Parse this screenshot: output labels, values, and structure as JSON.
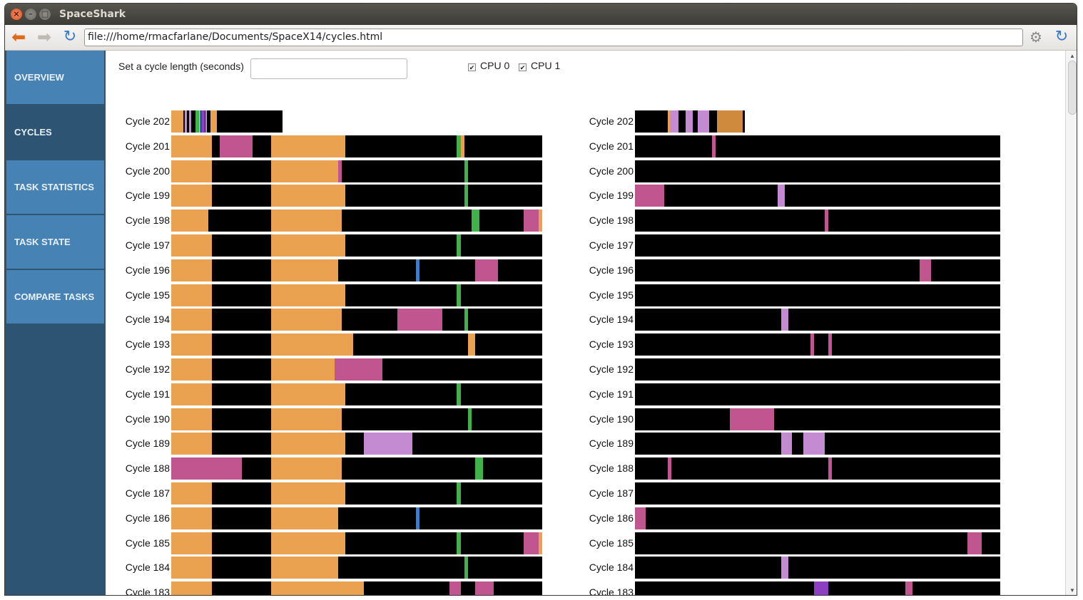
{
  "window": {
    "title": "SpaceShark"
  },
  "toolbar": {
    "url": "file:///home/rmacfarlane/Documents/SpaceX14/cycles.html"
  },
  "sidebar": {
    "items": [
      {
        "label": "OVERVIEW",
        "active": false
      },
      {
        "label": "CYCLES",
        "active": true
      },
      {
        "label": "TASK STATISTICS",
        "active": false
      },
      {
        "label": "TASK STATE",
        "active": false
      },
      {
        "label": "COMPARE TASKS",
        "active": false
      }
    ]
  },
  "controls": {
    "cycle_length_label": "Set a cycle length (seconds)",
    "cycle_length_value": "",
    "cpus": [
      {
        "label": "CPU 0",
        "checked": true
      },
      {
        "label": "CPU 1",
        "checked": true
      }
    ]
  },
  "colors": {
    "idle": "#000000",
    "orange": "#eaa150",
    "dark_orange": "#cf8a3e",
    "magenta": "#c0558f",
    "lavender": "#c48ad2",
    "green": "#3fb24a",
    "blue": "#2f7fe0",
    "purple": "#8b3fc2",
    "cyan": "#4ed6d0",
    "gray": "#4a4a4a",
    "accent": "#4682b4",
    "sidebar_bg": "#2d5473"
  },
  "cycles": {
    "rows": [
      {
        "label": "Cycle 202",
        "cpu0": [
          [
            0,
            11,
            "orange"
          ],
          [
            11,
            12,
            "black"
          ],
          [
            12,
            14,
            "lavender"
          ],
          [
            14,
            16,
            "black"
          ],
          [
            16,
            18,
            "lavender"
          ],
          [
            18,
            22,
            "black"
          ],
          [
            22,
            25,
            "green"
          ],
          [
            25,
            26,
            "cyan"
          ],
          [
            26,
            27,
            "black"
          ],
          [
            27,
            30,
            "purple"
          ],
          [
            30,
            31,
            "black"
          ],
          [
            31,
            32,
            "lavender"
          ],
          [
            32,
            35,
            "black"
          ],
          [
            35,
            41,
            "orange"
          ]
        ],
        "cpu1": [
          [
            0,
            30,
            "black"
          ],
          [
            30,
            32,
            "orange"
          ],
          [
            32,
            40,
            "lavender"
          ],
          [
            40,
            46,
            "black"
          ],
          [
            46,
            53,
            "lavender"
          ],
          [
            53,
            57,
            "black"
          ],
          [
            57,
            68,
            "lavender"
          ],
          [
            68,
            75,
            "black"
          ],
          [
            75,
            98,
            "dark_orange"
          ],
          [
            98,
            99,
            "black"
          ]
        ],
        "short": true
      },
      {
        "label": "Cycle 201",
        "cpu0": [
          [
            0,
            11,
            "orange"
          ],
          [
            11,
            13,
            "black"
          ],
          [
            13,
            22,
            "magenta"
          ],
          [
            22,
            27,
            "black"
          ],
          [
            27,
            47,
            "orange"
          ],
          [
            47,
            77,
            "black"
          ],
          [
            77,
            78,
            "green"
          ],
          [
            78,
            79,
            "orange"
          ],
          [
            79,
            100,
            "black"
          ]
        ],
        "cpu1": [
          [
            0,
            21,
            "black"
          ],
          [
            21,
            22,
            "magenta"
          ],
          [
            22,
            100,
            "black"
          ]
        ]
      },
      {
        "label": "Cycle 200",
        "cpu0": [
          [
            0,
            11,
            "orange"
          ],
          [
            11,
            27,
            "black"
          ],
          [
            27,
            45,
            "orange"
          ],
          [
            45,
            46,
            "magenta"
          ],
          [
            46,
            79,
            "black"
          ],
          [
            79,
            80,
            "green"
          ],
          [
            80,
            100,
            "black"
          ]
        ],
        "cpu1": [
          [
            0,
            100,
            "black"
          ]
        ]
      },
      {
        "label": "Cycle 199",
        "cpu0": [
          [
            0,
            11,
            "orange"
          ],
          [
            11,
            27,
            "black"
          ],
          [
            27,
            47,
            "orange"
          ],
          [
            47,
            79,
            "black"
          ],
          [
            79,
            80,
            "green"
          ],
          [
            80,
            100,
            "black"
          ]
        ],
        "cpu1": [
          [
            0,
            8,
            "magenta"
          ],
          [
            8,
            39,
            "black"
          ],
          [
            39,
            41,
            "lavender"
          ],
          [
            41,
            100,
            "black"
          ]
        ]
      },
      {
        "label": "Cycle 198",
        "cpu0": [
          [
            0,
            10,
            "orange"
          ],
          [
            10,
            27,
            "black"
          ],
          [
            27,
            46,
            "orange"
          ],
          [
            46,
            81,
            "black"
          ],
          [
            81,
            83,
            "green"
          ],
          [
            83,
            95,
            "black"
          ],
          [
            95,
            99,
            "magenta"
          ],
          [
            99,
            100,
            "orange"
          ]
        ],
        "cpu1": [
          [
            0,
            52,
            "black"
          ],
          [
            52,
            53,
            "magenta"
          ],
          [
            53,
            100,
            "black"
          ]
        ]
      },
      {
        "label": "Cycle 197",
        "cpu0": [
          [
            0,
            11,
            "orange"
          ],
          [
            11,
            27,
            "black"
          ],
          [
            27,
            47,
            "orange"
          ],
          [
            47,
            77,
            "black"
          ],
          [
            77,
            78,
            "green"
          ],
          [
            78,
            100,
            "black"
          ]
        ],
        "cpu1": [
          [
            0,
            100,
            "black"
          ]
        ]
      },
      {
        "label": "Cycle 196",
        "cpu0": [
          [
            0,
            11,
            "orange"
          ],
          [
            11,
            27,
            "black"
          ],
          [
            27,
            45,
            "orange"
          ],
          [
            45,
            66,
            "black"
          ],
          [
            66,
            67,
            "blue"
          ],
          [
            67,
            82,
            "black"
          ],
          [
            82,
            88,
            "magenta"
          ],
          [
            88,
            100,
            "black"
          ]
        ],
        "cpu1": [
          [
            0,
            78,
            "black"
          ],
          [
            78,
            81,
            "magenta"
          ],
          [
            81,
            100,
            "black"
          ]
        ]
      },
      {
        "label": "Cycle 195",
        "cpu0": [
          [
            0,
            11,
            "orange"
          ],
          [
            11,
            27,
            "black"
          ],
          [
            27,
            47,
            "orange"
          ],
          [
            47,
            77,
            "black"
          ],
          [
            77,
            78,
            "green"
          ],
          [
            78,
            100,
            "black"
          ]
        ],
        "cpu1": [
          [
            0,
            100,
            "black"
          ]
        ]
      },
      {
        "label": "Cycle 194",
        "cpu0": [
          [
            0,
            11,
            "orange"
          ],
          [
            11,
            27,
            "black"
          ],
          [
            27,
            46,
            "orange"
          ],
          [
            46,
            61,
            "black"
          ],
          [
            61,
            73,
            "magenta"
          ],
          [
            73,
            79,
            "black"
          ],
          [
            79,
            80,
            "green"
          ],
          [
            80,
            100,
            "black"
          ]
        ],
        "cpu1": [
          [
            0,
            40,
            "black"
          ],
          [
            40,
            42,
            "lavender"
          ],
          [
            42,
            100,
            "black"
          ]
        ]
      },
      {
        "label": "Cycle 193",
        "cpu0": [
          [
            0,
            11,
            "orange"
          ],
          [
            11,
            27,
            "black"
          ],
          [
            27,
            49,
            "orange"
          ],
          [
            49,
            80,
            "black"
          ],
          [
            80,
            82,
            "orange"
          ],
          [
            82,
            100,
            "black"
          ]
        ],
        "cpu1": [
          [
            0,
            48,
            "black"
          ],
          [
            48,
            49,
            "magenta"
          ],
          [
            49,
            53,
            "black"
          ],
          [
            53,
            54,
            "magenta"
          ],
          [
            54,
            100,
            "black"
          ]
        ]
      },
      {
        "label": "Cycle 192",
        "cpu0": [
          [
            0,
            11,
            "orange"
          ],
          [
            11,
            27,
            "black"
          ],
          [
            27,
            44,
            "orange"
          ],
          [
            44,
            57,
            "magenta"
          ],
          [
            57,
            100,
            "black"
          ]
        ],
        "cpu1": [
          [
            0,
            100,
            "black"
          ]
        ]
      },
      {
        "label": "Cycle 191",
        "cpu0": [
          [
            0,
            11,
            "orange"
          ],
          [
            11,
            27,
            "black"
          ],
          [
            27,
            47,
            "orange"
          ],
          [
            47,
            77,
            "black"
          ],
          [
            77,
            78,
            "green"
          ],
          [
            78,
            100,
            "black"
          ]
        ],
        "cpu1": [
          [
            0,
            100,
            "black"
          ]
        ]
      },
      {
        "label": "Cycle 190",
        "cpu0": [
          [
            0,
            11,
            "orange"
          ],
          [
            11,
            27,
            "black"
          ],
          [
            27,
            46,
            "orange"
          ],
          [
            46,
            80,
            "black"
          ],
          [
            80,
            81,
            "green"
          ],
          [
            81,
            100,
            "black"
          ]
        ],
        "cpu1": [
          [
            0,
            26,
            "black"
          ],
          [
            26,
            38,
            "magenta"
          ],
          [
            38,
            100,
            "black"
          ]
        ]
      },
      {
        "label": "Cycle 189",
        "cpu0": [
          [
            0,
            11,
            "orange"
          ],
          [
            11,
            27,
            "black"
          ],
          [
            27,
            47,
            "orange"
          ],
          [
            47,
            52,
            "black"
          ],
          [
            52,
            65,
            "lavender"
          ],
          [
            65,
            100,
            "black"
          ]
        ],
        "cpu1": [
          [
            0,
            40,
            "black"
          ],
          [
            40,
            43,
            "lavender"
          ],
          [
            43,
            46,
            "black"
          ],
          [
            46,
            52,
            "lavender"
          ],
          [
            52,
            100,
            "black"
          ]
        ]
      },
      {
        "label": "Cycle 188",
        "cpu0": [
          [
            0,
            11,
            "magenta"
          ],
          [
            11,
            19,
            "magenta"
          ],
          [
            19,
            27,
            "black"
          ],
          [
            27,
            46,
            "orange"
          ],
          [
            46,
            82,
            "black"
          ],
          [
            82,
            84,
            "green"
          ],
          [
            84,
            100,
            "black"
          ]
        ],
        "cpu1": [
          [
            0,
            9,
            "black"
          ],
          [
            9,
            10,
            "magenta"
          ],
          [
            10,
            53,
            "black"
          ],
          [
            53,
            54,
            "magenta"
          ],
          [
            54,
            100,
            "black"
          ]
        ]
      },
      {
        "label": "Cycle 187",
        "cpu0": [
          [
            0,
            11,
            "orange"
          ],
          [
            11,
            27,
            "black"
          ],
          [
            27,
            47,
            "orange"
          ],
          [
            47,
            77,
            "black"
          ],
          [
            77,
            78,
            "green"
          ],
          [
            78,
            100,
            "black"
          ]
        ],
        "cpu1": [
          [
            0,
            100,
            "black"
          ]
        ]
      },
      {
        "label": "Cycle 186",
        "cpu0": [
          [
            0,
            11,
            "orange"
          ],
          [
            11,
            27,
            "black"
          ],
          [
            27,
            45,
            "orange"
          ],
          [
            45,
            66,
            "black"
          ],
          [
            66,
            67,
            "blue"
          ],
          [
            67,
            100,
            "black"
          ]
        ],
        "cpu1": [
          [
            0,
            3,
            "magenta"
          ],
          [
            3,
            100,
            "black"
          ]
        ]
      },
      {
        "label": "Cycle 185",
        "cpu0": [
          [
            0,
            11,
            "orange"
          ],
          [
            11,
            27,
            "black"
          ],
          [
            27,
            47,
            "orange"
          ],
          [
            47,
            77,
            "black"
          ],
          [
            77,
            78,
            "green"
          ],
          [
            78,
            95,
            "black"
          ],
          [
            95,
            99,
            "magenta"
          ],
          [
            99,
            100,
            "orange"
          ]
        ],
        "cpu1": [
          [
            0,
            91,
            "black"
          ],
          [
            91,
            95,
            "magenta"
          ],
          [
            95,
            100,
            "black"
          ]
        ]
      },
      {
        "label": "Cycle 184",
        "cpu0": [
          [
            0,
            11,
            "orange"
          ],
          [
            11,
            27,
            "black"
          ],
          [
            27,
            45,
            "orange"
          ],
          [
            45,
            79,
            "black"
          ],
          [
            79,
            80,
            "green"
          ],
          [
            80,
            100,
            "black"
          ]
        ],
        "cpu1": [
          [
            0,
            40,
            "black"
          ],
          [
            40,
            42,
            "lavender"
          ],
          [
            42,
            100,
            "black"
          ]
        ]
      },
      {
        "label": "Cycle 183",
        "cpu0": [
          [
            0,
            11,
            "orange"
          ],
          [
            11,
            27,
            "black"
          ],
          [
            27,
            52,
            "orange"
          ],
          [
            52,
            75,
            "black"
          ],
          [
            75,
            78,
            "magenta"
          ],
          [
            78,
            82,
            "black"
          ],
          [
            82,
            87,
            "magenta"
          ],
          [
            87,
            100,
            "black"
          ]
        ],
        "cpu1": [
          [
            0,
            49,
            "black"
          ],
          [
            49,
            53,
            "purple"
          ],
          [
            53,
            74,
            "black"
          ],
          [
            74,
            76,
            "magenta"
          ],
          [
            76,
            100,
            "black"
          ]
        ]
      }
    ]
  }
}
